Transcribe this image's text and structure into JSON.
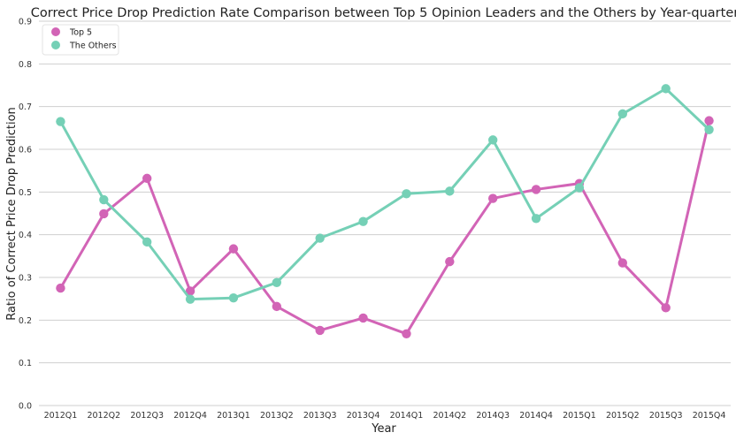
{
  "chart_data": {
    "type": "line",
    "title": "Correct Price Drop Prediction Rate Comparison between Top 5 Opinion Leaders and the Others by Year-quarter",
    "xlabel": "Year",
    "ylabel": "Ratio of Correct Price Drop Prediction",
    "categories": [
      "2012Q1",
      "2012Q2",
      "2012Q3",
      "2012Q4",
      "2013Q1",
      "2013Q2",
      "2013Q3",
      "2013Q4",
      "2014Q1",
      "2014Q2",
      "2014Q3",
      "2014Q4",
      "2015Q1",
      "2015Q2",
      "2015Q3",
      "2015Q4"
    ],
    "ylim": [
      0,
      0.9
    ],
    "yticks": [
      "0.0",
      "0.1",
      "0.2",
      "0.3",
      "0.4",
      "0.5",
      "0.6",
      "0.7",
      "0.8",
      "0.9"
    ],
    "grid": true,
    "legend_position": "top-left",
    "series": [
      {
        "name": "Top 5",
        "color": "#d264b6",
        "values": [
          0.275,
          0.449,
          0.532,
          0.268,
          0.367,
          0.232,
          0.176,
          0.205,
          0.168,
          0.337,
          0.485,
          0.506,
          0.52,
          0.334,
          0.229,
          0.667
        ]
      },
      {
        "name": "The Others",
        "color": "#75d0b6",
        "values": [
          0.665,
          0.482,
          0.383,
          0.249,
          0.252,
          0.288,
          0.392,
          0.431,
          0.496,
          0.502,
          0.622,
          0.438,
          0.51,
          0.683,
          0.742,
          0.646
        ]
      }
    ]
  }
}
